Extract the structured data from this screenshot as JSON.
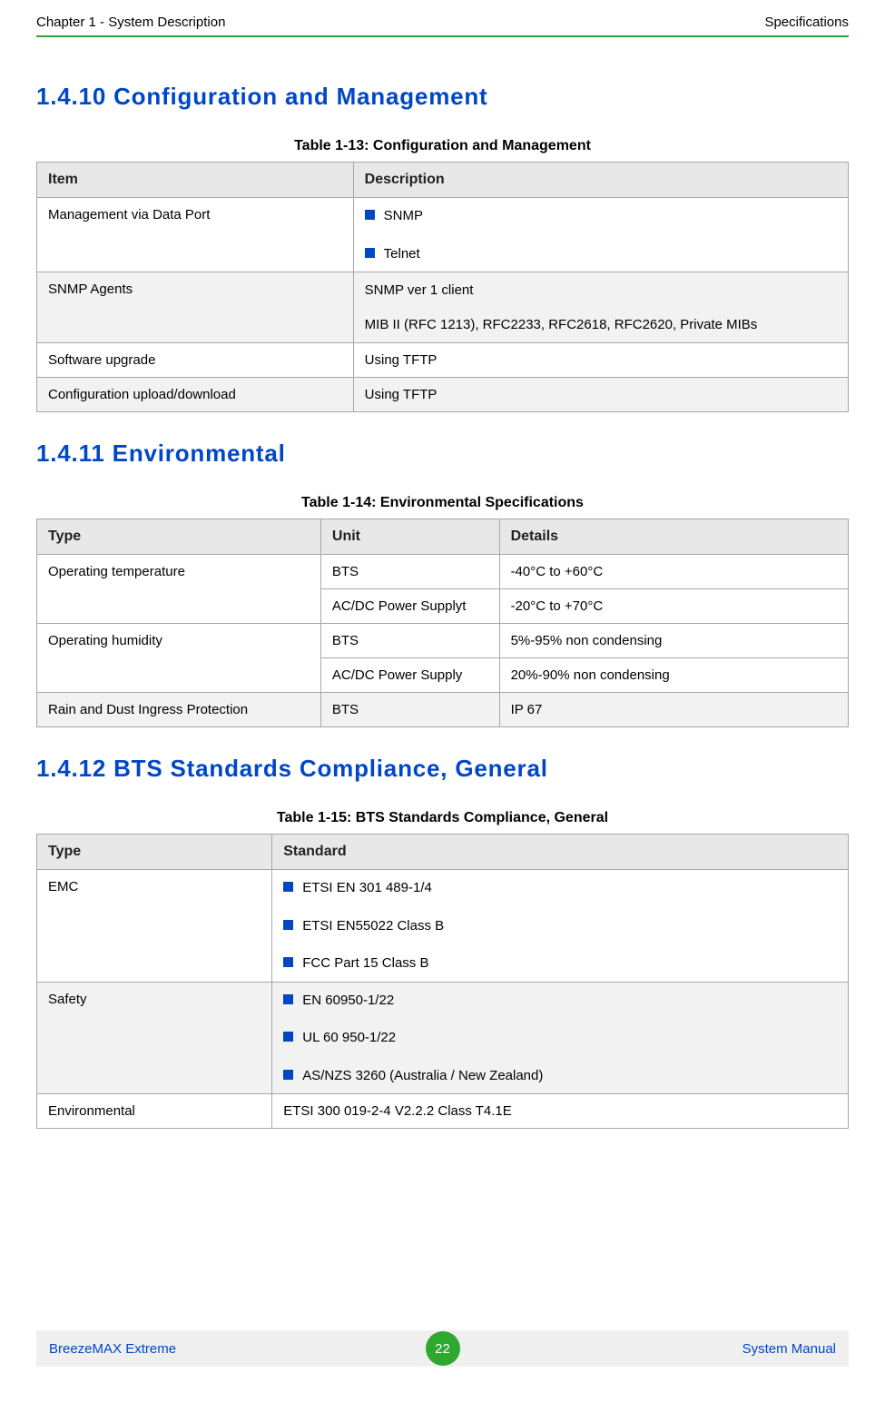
{
  "header": {
    "left": "Chapter 1 - System Description",
    "right": "Specifications"
  },
  "sections": {
    "s1": {
      "heading": "1.4.10   Configuration and Management",
      "caption": "Table 1-13: Configuration and Management",
      "cols": [
        "Item",
        "Description"
      ],
      "rows": {
        "r1_c1": "Management via Data Port",
        "r1_b1": "SNMP",
        "r1_b2": "Telnet",
        "r2_c1": "SNMP Agents",
        "r2_l1": "SNMP ver 1 client",
        "r2_l2": "MIB II (RFC 1213), RFC2233, RFC2618, RFC2620, Private MIBs",
        "r3_c1": "Software upgrade",
        "r3_c2": "Using TFTP",
        "r4_c1": "Configuration upload/download",
        "r4_c2": "Using TFTP"
      }
    },
    "s2": {
      "heading": "1.4.11   Environmental",
      "caption": "Table 1-14: Environmental Specifications",
      "cols": [
        "Type",
        "Unit",
        "Details"
      ],
      "rows": {
        "r1_c1": "Operating temperature",
        "r1_c2": "BTS",
        "r1_c3": " -40°C to +60°C",
        "r2_c2": "AC/DC Power Supplyt",
        "r2_c3": "-20°C to +70°C",
        "r3_c1": "Operating humidity",
        "r3_c2": "BTS",
        "r3_c3": "5%-95% non condensing",
        "r4_c2": "AC/DC Power Supply",
        "r4_c3": "20%-90% non condensing",
        "r5_c1": "Rain and Dust Ingress Protection",
        "r5_c2": "BTS",
        "r5_c3": "IP 67"
      }
    },
    "s3": {
      "heading": "1.4.12   BTS Standards Compliance, General",
      "caption": "Table 1-15: BTS Standards Compliance, General",
      "cols": [
        "Type",
        "Standard"
      ],
      "rows": {
        "r1_c1": "EMC",
        "r1_b1": "ETSI EN 301 489-1/4",
        "r1_b2": "ETSI EN55022 Class B",
        "r1_b3": "FCC Part 15 Class B",
        "r2_c1": "Safety",
        "r2_b1": "EN 60950-1/22",
        "r2_b2": "UL 60 950-1/22",
        "r2_b3": "AS/NZS 3260 (Australia / New Zealand)",
        "r3_c1": "Environmental",
        "r3_c2": "ETSI 300 019-2-4 V2.2.2 Class T4.1E"
      }
    }
  },
  "footer": {
    "left": "BreezeMAX Extreme",
    "page": "22",
    "right": "System Manual"
  },
  "colors": {
    "heading": "#0047c6",
    "rule": "#2ea82e",
    "bullet": "#0047c6",
    "th_bg": "#e8e8e8",
    "stripe_bg": "#f2f2f2",
    "border": "#a7a7a7",
    "footer_bg": "#efefef",
    "badge_bg": "#2ea82e"
  }
}
